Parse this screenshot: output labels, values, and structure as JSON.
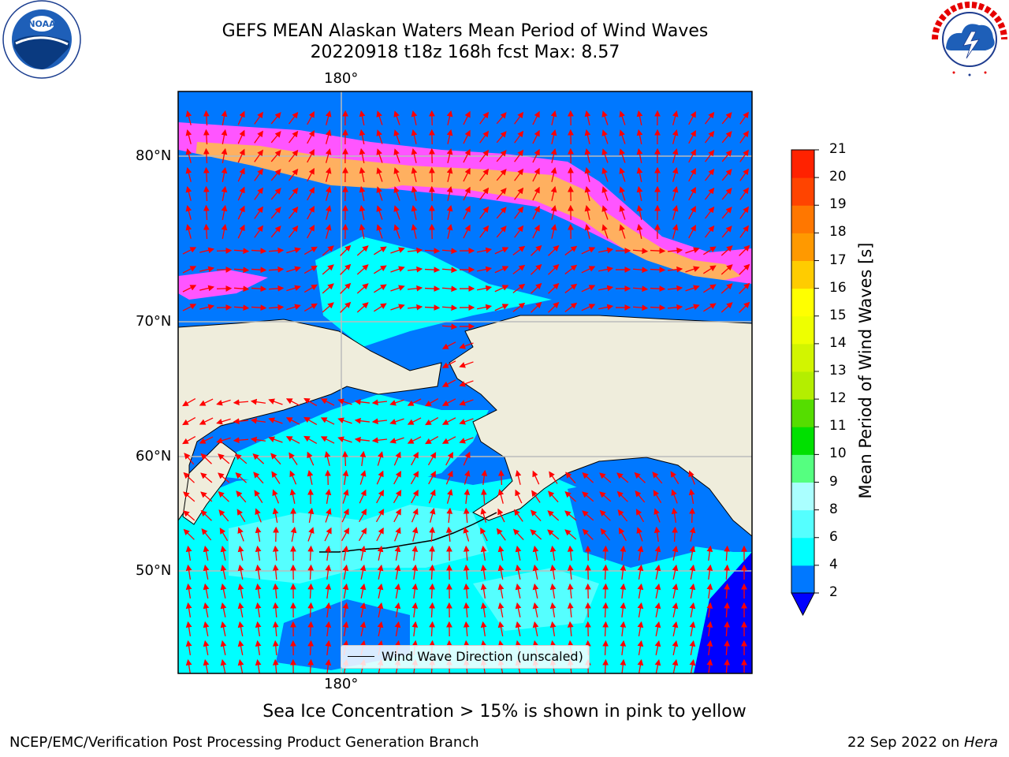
{
  "title_line1": "GEFS MEAN Alaskan Waters Mean Period of Wind Waves",
  "title_line2": "20220918 t18z 168h fcst    Max: 8.57",
  "longitude_label": "180°",
  "latitude_labels": [
    "80°N",
    "70°N",
    "60°N",
    "50°N"
  ],
  "legend_label": "Wind Wave Direction (unscaled)",
  "colorbar": {
    "label": "Mean Period of Wind Waves [s]",
    "ticks": [
      "2",
      "4",
      "6",
      "8",
      "9",
      "10",
      "11",
      "12",
      "13",
      "14",
      "15",
      "16",
      "17",
      "18",
      "19",
      "20",
      "21"
    ],
    "colors": [
      "#0078ff",
      "#00ffff",
      "#55ffff",
      "#aaffff",
      "#55ff80",
      "#00e000",
      "#55dd00",
      "#b4ee00",
      "#d2f500",
      "#eeff00",
      "#ffff00",
      "#ffcc00",
      "#ff9900",
      "#ff7700",
      "#ff4400",
      "#ff2200",
      "#ff0000"
    ],
    "under_color": "#0000ff"
  },
  "note": "Sea Ice Concentration > 15% is shown in pink to yellow",
  "credit_left": "NCEP/EMC/Verification Post Processing Product Generation Branch",
  "credit_right_prefix": "22 Sep 2022 on ",
  "credit_right_host": "Hera",
  "logos": {
    "left": "noaa-logo",
    "right": "national-weather-service-logo"
  },
  "colors": {
    "land": "#efeddc",
    "ocean_dark": "#0078ff",
    "ocean_light": "#00ffff",
    "ocean_pale": "#55ffff",
    "ice_pink": "#ff55ff",
    "ice_orange": "#ffb060",
    "arrow": "#ff0000"
  }
}
